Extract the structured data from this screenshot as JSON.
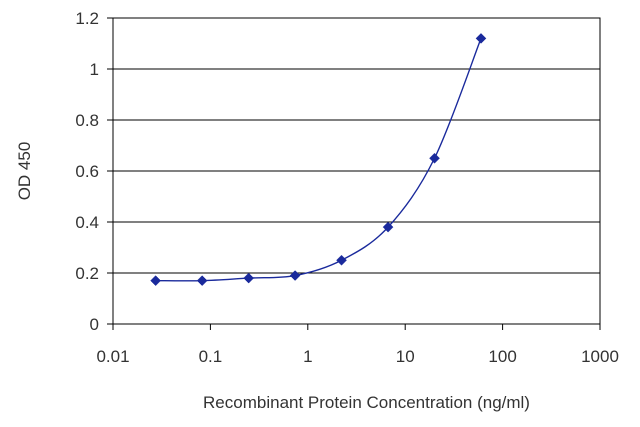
{
  "chart_data": {
    "type": "line",
    "title": "",
    "xlabel": "Recombinant Protein Concentration (ng/ml)",
    "ylabel": "OD 450",
    "x_scale": "log",
    "xlim": [
      0.01,
      1000
    ],
    "ylim": [
      0,
      1.2
    ],
    "x_ticks": [
      "0.01",
      "0.1",
      "1",
      "10",
      "100",
      "1000"
    ],
    "y_ticks": [
      "0",
      "0.2",
      "0.4",
      "0.6",
      "0.8",
      "1",
      "1.2"
    ],
    "grid": "horizontal",
    "legend": "none",
    "series": [
      {
        "color": "#1a2a9c",
        "marker": "diamond",
        "x": [
          0.0274,
          0.0823,
          0.247,
          0.741,
          2.22,
          6.67,
          20,
          60
        ],
        "y": [
          0.17,
          0.17,
          0.18,
          0.19,
          0.25,
          0.38,
          0.65,
          1.12
        ]
      }
    ]
  }
}
